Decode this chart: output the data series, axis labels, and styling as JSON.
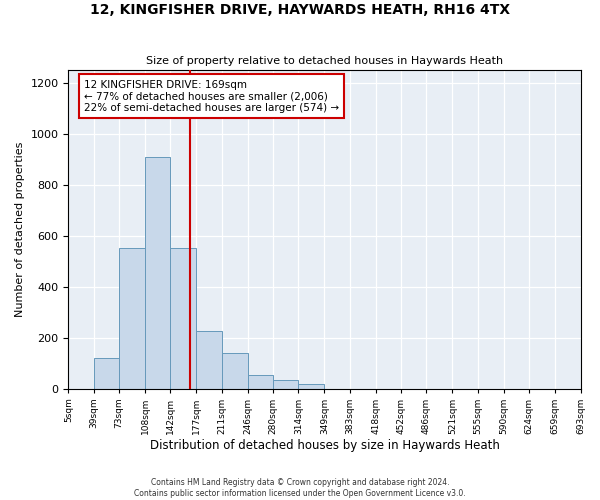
{
  "title": "12, KINGFISHER DRIVE, HAYWARDS HEATH, RH16 4TX",
  "subtitle": "Size of property relative to detached houses in Haywards Heath",
  "xlabel": "Distribution of detached houses by size in Haywards Heath",
  "ylabel": "Number of detached properties",
  "bin_edges": [
    5,
    39,
    73,
    108,
    142,
    177,
    211,
    246,
    280,
    314,
    349,
    383,
    418,
    452,
    486,
    521,
    555,
    590,
    624,
    659,
    693
  ],
  "bin_counts": [
    0,
    120,
    550,
    910,
    550,
    225,
    140,
    55,
    35,
    18,
    0,
    0,
    0,
    0,
    0,
    0,
    0,
    0,
    0,
    0
  ],
  "bar_facecolor": "#c8d8ea",
  "bar_edgecolor": "#6699bb",
  "vline_x": 169,
  "vline_color": "#cc0000",
  "annotation_line1": "12 KINGFISHER DRIVE: 169sqm",
  "annotation_line2": "← 77% of detached houses are smaller (2,006)",
  "annotation_line3": "22% of semi-detached houses are larger (574) →",
  "annotation_box_edgecolor": "#cc0000",
  "annotation_box_facecolor": "#ffffff",
  "ylim": [
    0,
    1250
  ],
  "yticks": [
    0,
    200,
    400,
    600,
    800,
    1000,
    1200
  ],
  "tick_labels": [
    "5sqm",
    "39sqm",
    "73sqm",
    "108sqm",
    "142sqm",
    "177sqm",
    "211sqm",
    "246sqm",
    "280sqm",
    "314sqm",
    "349sqm",
    "383sqm",
    "418sqm",
    "452sqm",
    "486sqm",
    "521sqm",
    "555sqm",
    "590sqm",
    "624sqm",
    "659sqm",
    "693sqm"
  ],
  "footer_line1": "Contains HM Land Registry data © Crown copyright and database right 2024.",
  "footer_line2": "Contains public sector information licensed under the Open Government Licence v3.0.",
  "fig_facecolor": "#ffffff",
  "plot_facecolor": "#e8eef5"
}
